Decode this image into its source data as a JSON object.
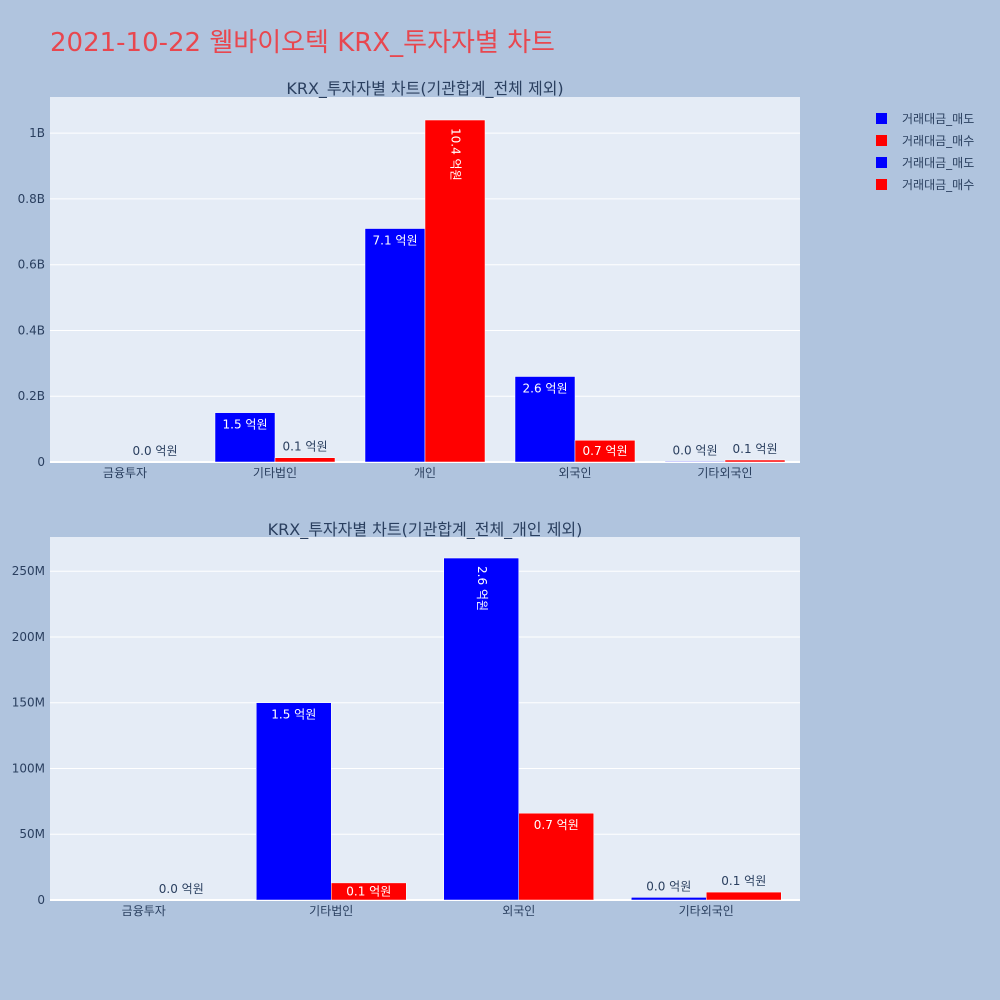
{
  "title": "2021-10-22 웰바이오텍 KRX_투자자별 차트",
  "legend": [
    {
      "label": "거래대금_매도",
      "color": "#0000ff"
    },
    {
      "label": "거래대금_매수",
      "color": "#ff0000"
    },
    {
      "label": "거래대금_매도",
      "color": "#0000ff"
    },
    {
      "label": "거래대금_매수",
      "color": "#ff0000"
    }
  ],
  "colors": {
    "sell": "#0000ff",
    "buy": "#ff0000",
    "plot_bg": "#e5ecf6",
    "page_bg": "#b0c4de",
    "text": "#2a3f5f"
  },
  "chart_data": [
    {
      "type": "bar",
      "title": "KRX_투자자별 차트(기관합계_전체 제외)",
      "categories": [
        "금융투자",
        "기타법인",
        "개인",
        "외국인",
        "기타외국인"
      ],
      "series": [
        {
          "name": "거래대금_매도",
          "values": [
            0,
            150000000,
            710000000,
            260000000,
            2000000
          ],
          "labels": [
            "",
            "1.5 억원",
            "7.1 억원",
            "2.6 억원",
            "0.0 억원"
          ]
        },
        {
          "name": "거래대금_매수",
          "values": [
            0,
            13000000,
            1040000000,
            66000000,
            6000000
          ],
          "labels": [
            "0.0 억원",
            "0.1 억원",
            "10.4 억원",
            "0.7 억원",
            "0.1 억원"
          ]
        }
      ],
      "yticks": [
        0,
        200000000,
        400000000,
        600000000,
        800000000,
        1000000000
      ],
      "ytick_labels": [
        "0",
        "0.2B",
        "0.4B",
        "0.6B",
        "0.8B",
        "1B"
      ],
      "ylim": [
        0,
        1110000000
      ],
      "grid": true
    },
    {
      "type": "bar",
      "title": "KRX_투자자별 차트(기관합계_전체_개인 제외)",
      "categories": [
        "금융투자",
        "기타법인",
        "외국인",
        "기타외국인"
      ],
      "series": [
        {
          "name": "거래대금_매도",
          "values": [
            0,
            150000000,
            260000000,
            2000000
          ],
          "labels": [
            "",
            "1.5 억원",
            "2.6 억원",
            "0.0 억원"
          ]
        },
        {
          "name": "거래대금_매수",
          "values": [
            0,
            13000000,
            66000000,
            6000000
          ],
          "labels": [
            "0.0 억원",
            "0.1 억원",
            "0.7 억원",
            "0.1 억원"
          ]
        }
      ],
      "yticks": [
        0,
        50000000,
        100000000,
        150000000,
        200000000,
        250000000
      ],
      "ytick_labels": [
        "0",
        "50M",
        "100M",
        "150M",
        "200M",
        "250M"
      ],
      "ylim": [
        0,
        276000000
      ],
      "grid": true
    }
  ]
}
